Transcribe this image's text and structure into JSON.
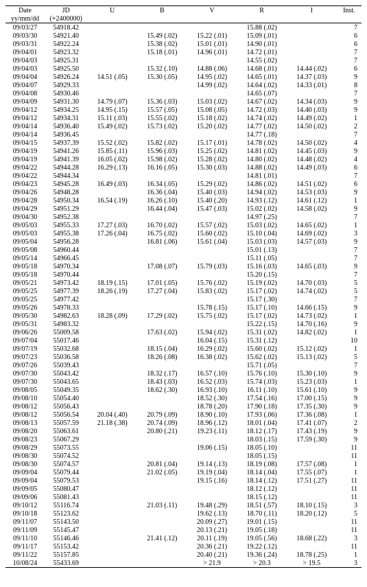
{
  "columns": [
    "Date",
    "JD",
    "U",
    "B",
    "V",
    "R",
    "I",
    "Inst."
  ],
  "subheader": [
    "yy/mm/dd",
    "(+2400000)",
    "",
    "",
    "",
    "",
    "",
    ""
  ],
  "rows": [
    [
      "09/03/27",
      "54918.42",
      "",
      "",
      "",
      "15.88 (.02)",
      "",
      "7"
    ],
    [
      "09/03/30",
      "54921.40",
      "",
      "15.49 (.02)",
      "15.22 (.01)",
      "15.09 (.01)",
      "",
      "6"
    ],
    [
      "09/03/31",
      "54922.24",
      "",
      "15.38 (.02)",
      "15.01 (.01)",
      "14.90 (.01)",
      "",
      "6"
    ],
    [
      "09/04/01",
      "54923.32",
      "",
      "15.18 (.01)",
      "14.96 (.01)",
      "14.72 (.01)",
      "",
      "7"
    ],
    [
      "09/04/03",
      "54925.31",
      "",
      "",
      "",
      "14.55 (.02)",
      "",
      "7"
    ],
    [
      "09/04/03",
      "54925.50",
      "",
      "15.32 (.10)",
      "14.88 (.06)",
      "14.68 (.01)",
      "14.44 (.02)",
      "6"
    ],
    [
      "09/04/04",
      "54926.24",
      "14.51 (.05)",
      "15.30 (.05)",
      "14.95 (.02)",
      "14.65 (.01)",
      "14.37 (.03)",
      "9"
    ],
    [
      "09/04/07",
      "54929.33",
      "",
      "",
      "14.99 (.02)",
      "14.64 (.02)",
      "14.33 (.01)",
      "8"
    ],
    [
      "09/04/08",
      "54930.46",
      "",
      "",
      "",
      "14.65 (.07)",
      "",
      "7"
    ],
    [
      "09/04/09",
      "54931.30",
      "14.79 (.07)",
      "15.36 (.03)",
      "15.03 (.02)",
      "14.67 (.02)",
      "14.34 (.03)",
      "9"
    ],
    [
      "09/04/12",
      "54934.25",
      "14.95 (.15)",
      "15.57 (.05)",
      "15.08 (.05)",
      "14.72 (.03)",
      "14.40 (.03)",
      "9"
    ],
    [
      "09/04/12",
      "54934.31",
      "15.11 (.03)",
      "15.55 (.02)",
      "15.18 (.02)",
      "14.74 (.02)",
      "14.49 (.02)",
      "1"
    ],
    [
      "09/04/14",
      "54936.40",
      "15.49 (.02)",
      "15.73 (.02)",
      "15.20 (.02)",
      "14.77 (.02)",
      "14.50 (.02)",
      "2"
    ],
    [
      "09/04/14",
      "54936.45",
      "",
      "",
      "",
      "14.77 (.18)",
      "",
      "7"
    ],
    [
      "09/04/15",
      "54937.39",
      "15.52 (.02)",
      "15.82 (.02)",
      "15.17 (.01)",
      "14.78 (.02)",
      "14.50 (.02)",
      "4"
    ],
    [
      "09/04/19",
      "54941.26",
      "15.85 (.11)",
      "15.96 (.03)",
      "15.25 (.02)",
      "14.81 (.02)",
      "14.45 (.03)",
      "9"
    ],
    [
      "09/04/19",
      "54941.39",
      "16.05 (.02)",
      "15.98 (.02)",
      "15.28 (.02)",
      "14.80 (.02)",
      "14.48 (.02)",
      "4"
    ],
    [
      "09/04/22",
      "54944.28",
      "16.29 (.13)",
      "16.16 (.05)",
      "15.30 (.03)",
      "14.88 (.02)",
      "14.49 (.03)",
      "6"
    ],
    [
      "09/04/22",
      "54944.34",
      "",
      "",
      "",
      "14.81 (.01)",
      "",
      "7"
    ],
    [
      "09/04/23",
      "54945.28",
      "16.49 (.03)",
      "16.34 (.05)",
      "15.29 (.02)",
      "14.86 (.02)",
      "14.51 (.02)",
      "6"
    ],
    [
      "09/04/26",
      "54948.28",
      "",
      "16.36 (.04)",
      "15.40 (.03)",
      "14.94 (.02)",
      "14.53 (.03)",
      "9"
    ],
    [
      "09/04/28",
      "54950.34",
      "16.54 (.19)",
      "16.26 (.10)",
      "15.40 (.20)",
      "14.93 (.12)",
      "14.61 (.12)",
      "1"
    ],
    [
      "09/04/29",
      "54951.29",
      "",
      "16.44 (.04)",
      "15.47 (.03)",
      "15.02 (.02)",
      "14.58 (.02)",
      "9"
    ],
    [
      "09/04/30",
      "54952.38",
      "",
      "",
      "",
      "14.97 (.25)",
      "",
      "7"
    ],
    [
      "09/05/03",
      "54955.33",
      "17.27 (.03)",
      "16.70 (.02)",
      "15.57 (.02)",
      "15.03 (.02)",
      "14.65 (.02)",
      "1"
    ],
    [
      "09/05/03",
      "54955.38",
      "17.26 (.04)",
      "16.75 (.02)",
      "15.60 (.02)",
      "15.10 (.04)",
      "14.69 (.02)",
      "3"
    ],
    [
      "09/05/04",
      "54956.28",
      "",
      "16.81 (.06)",
      "15.61 (.04)",
      "15.03 (.03)",
      "14.57 (.03)",
      "9"
    ],
    [
      "09/05/08",
      "54960.44",
      "",
      "",
      "",
      "15.01 (.13)",
      "",
      "7"
    ],
    [
      "09/05/14",
      "54966.45",
      "",
      "",
      "",
      "15.11 (.05)",
      "",
      "7"
    ],
    [
      "09/05/18",
      "54970.34",
      "",
      "17.08 (.07)",
      "15.79 (.03)",
      "15.16 (.03)",
      "14.65 (.03)",
      "9"
    ],
    [
      "09/05/18",
      "54970.44",
      "",
      "",
      "",
      "15.20 (.15)",
      "",
      "7"
    ],
    [
      "09/05/21",
      "54973.42",
      "18.19 (.15)",
      "17.01 (.05)",
      "15.76 (.02)",
      "15.19 (.02)",
      "14.70 (.03)",
      "5"
    ],
    [
      "09/05/25",
      "54977.39",
      "18.26 (.19)",
      "17.27 (.04)",
      "15.83 (.02)",
      "15.17 (.02)",
      "14.74 (.02)",
      "5"
    ],
    [
      "09/05/25",
      "54977.42",
      "",
      "",
      "",
      "15.17 (.30)",
      "",
      "7"
    ],
    [
      "09/05/26",
      "54978.33",
      "",
      "",
      "15.78 (.15)",
      "15.17 (.10)",
      "14.66 (.15)",
      "9"
    ],
    [
      "09/05/30",
      "54982.63",
      "18.28 (.09)",
      "17.29 (.02)",
      "15.75 (.02)",
      "15.17 (.02)",
      "14.73 (.02)",
      "1"
    ],
    [
      "09/05/31",
      "54983.32",
      "",
      "",
      "",
      "15.22 (.15)",
      "14.70 (.16)",
      "9"
    ],
    [
      "09/06/26",
      "55009.58",
      "",
      "17.63 (.02)",
      "15.94 (.02)",
      "15.31 (.02)",
      "14.82 (.02)",
      "1"
    ],
    [
      "09/07/04",
      "55017.46",
      "",
      "",
      "16.04 (.15)",
      "15.31 (.12)",
      "",
      "10"
    ],
    [
      "09/07/19",
      "55032.68",
      "",
      "18.15 (.04)",
      "16.29 (.02)",
      "15.60 (.02)",
      "15.12 (.02)",
      "1"
    ],
    [
      "09/07/23",
      "55036.58",
      "",
      "18.26 (.08)",
      "16.38 (.02)",
      "15.62 (.02)",
      "15.13 (.02)",
      "5"
    ],
    [
      "09/07/26",
      "55039.43",
      "",
      "",
      "",
      "15.71 (.05)",
      "",
      "7"
    ],
    [
      "09/07/30",
      "55043.42",
      "",
      "18.32 (.17)",
      "16.57 (.10)",
      "15.76 (.10)",
      "15.30 (.10)",
      "9"
    ],
    [
      "09/07/30",
      "55043.65",
      "",
      "18.43 (.03)",
      "16.52 (.03)",
      "15.74 (.03)",
      "15.23 (.03)",
      "1"
    ],
    [
      "09/08/05",
      "55049.35",
      "",
      "18.62 (.30)",
      "16.93 (.10)",
      "16.11 (.10)",
      "15.61 (.10)",
      "9"
    ],
    [
      "09/08/10",
      "55054.40",
      "",
      "",
      "18.52 (.30)",
      "17.54 (.16)",
      "17.00 (.15)",
      "9"
    ],
    [
      "09/08/12",
      "55056.43",
      "",
      "",
      "18.78 (.20)",
      "17.90 (.18)",
      "17.35 (.30)",
      "9"
    ],
    [
      "09/08/12",
      "55056.54",
      "20.04 (.40)",
      "20.79 (.09)",
      "18.90 (.10)",
      "17.93 (.06)",
      "17.36 (.08)",
      "1"
    ],
    [
      "09/08/13",
      "55057.59",
      "21.18 (.38)",
      "20.74 (.09)",
      "18.96 (.12)",
      "18.01 (.04)",
      "17.41 (.07)",
      "2"
    ],
    [
      "09/08/20",
      "55063.61",
      "",
      "20.80 (.21)",
      "19.23 (.11)",
      "18.12 (.17)",
      "17.43 (.19)",
      "9"
    ],
    [
      "09/08/23",
      "55067.29",
      "",
      "",
      "",
      "18.03 (.15)",
      "17.59 (.30)",
      "9"
    ],
    [
      "09/08/29",
      "55073.55",
      "",
      "",
      "19.06 (.15)",
      "18.05 (.10)",
      "",
      "11"
    ],
    [
      "09/08/30",
      "55074.52",
      "",
      "",
      "",
      "18.05 (.15)",
      "",
      "11"
    ],
    [
      "09/08/30",
      "55074.57",
      "",
      "20.81 (.04)",
      "19.14 (.13)",
      "18.19 (.08)",
      "17.57 (.08)",
      "1"
    ],
    [
      "09/09/04",
      "55079.44",
      "",
      "21.02 (.05)",
      "19.19 (.04)",
      "18.14 (.04)",
      "17.55 (.07)",
      "1"
    ],
    [
      "09/09/04",
      "55079.53",
      "",
      "",
      "19.15 (.16)",
      "18.14 (.12)",
      "17.51 (.27)",
      "11"
    ],
    [
      "09/09/05",
      "55080.47",
      "",
      "",
      "",
      "18.12 (.12)",
      "",
      "11"
    ],
    [
      "09/09/06",
      "55081.43",
      "",
      "",
      "",
      "18.15 (.12)",
      "",
      "11"
    ],
    [
      "09/10/12",
      "55116.74",
      "",
      "21.03 (.11)",
      "19.48 (.29)",
      "18.51 (.57)",
      "18.10 (.15)",
      "3"
    ],
    [
      "09/10/18",
      "55123.62",
      "",
      "",
      "19.62 (.13)",
      "18.70 (.11)",
      "18.20 (.12)",
      "5"
    ],
    [
      "09/11/07",
      "55143.50",
      "",
      "",
      "20.09 (.27)",
      "19.01 (.15)",
      "",
      "11"
    ],
    [
      "09/11/09",
      "55145.47",
      "",
      "",
      "20.13 (.21)",
      "19.05 (.18)",
      "",
      "11"
    ],
    [
      "09/11/10",
      "55146.46",
      "",
      "21.41 (.12)",
      "20.11 (.19)",
      "19.05 (.56)",
      "18.68 (.22)",
      "3"
    ],
    [
      "09/11/17",
      "55153.42",
      "",
      "",
      "20.36 (.21)",
      "19.22 (.12)",
      "",
      "11"
    ],
    [
      "09/11/22",
      "55157.85",
      "",
      "",
      "20.40 (.21)",
      "19.36 (.24)",
      "18.78 (.25)",
      "1"
    ],
    [
      "10/08/24",
      "55433.69",
      "",
      "",
      "> 21.9",
      "> 20.3",
      "> 19.5",
      "3"
    ]
  ],
  "style": {
    "font_family": "Times New Roman",
    "font_size_pt": 8,
    "text_color": "#000000",
    "background_color": "#ffffff",
    "rule_color": "#000000"
  }
}
